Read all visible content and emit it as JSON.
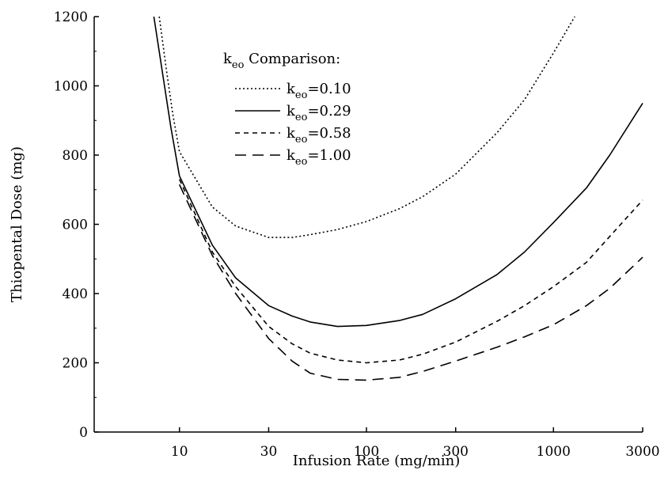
{
  "chart_data": {
    "type": "line",
    "xlabel": "Infusion Rate (mg/min)",
    "ylabel": "Thiopental Dose (mg)",
    "x_scale": "log",
    "xlim": [
      3.5,
      3000
    ],
    "ylim": [
      0,
      1200
    ],
    "x_ticks": [
      10,
      30,
      100,
      300,
      1000,
      3000
    ],
    "x_tick_labels": [
      "10",
      "30",
      "100",
      "300",
      "1000",
      "3000"
    ],
    "y_ticks": [
      0,
      200,
      400,
      600,
      800,
      1000,
      1200
    ],
    "y_tick_labels": [
      "0",
      "200",
      "400",
      "600",
      "800",
      "1000",
      "1200"
    ],
    "legend": {
      "title_main": "k",
      "title_sub": "eo",
      "title_rest": " Comparison:",
      "placement": "top-center"
    },
    "series": [
      {
        "name": "keo=0.10",
        "label_main": "k",
        "label_sub": "eo",
        "label_rest": "=0.10",
        "style": "dotted",
        "points": [
          [
            7.8,
            1200
          ],
          [
            8.5,
            1050
          ],
          [
            9.2,
            920
          ],
          [
            10,
            810
          ],
          [
            15,
            650
          ],
          [
            20,
            595
          ],
          [
            30,
            562
          ],
          [
            40,
            562
          ],
          [
            50,
            570
          ],
          [
            70,
            585
          ],
          [
            100,
            608
          ],
          [
            150,
            645
          ],
          [
            200,
            680
          ],
          [
            300,
            745
          ],
          [
            500,
            865
          ],
          [
            700,
            960
          ],
          [
            1000,
            1095
          ],
          [
            1300,
            1200
          ]
        ]
      },
      {
        "name": "keo=0.29",
        "label_main": "k",
        "label_sub": "eo",
        "label_rest": "=0.29",
        "style": "solid",
        "points": [
          [
            7.3,
            1200
          ],
          [
            8,
            1060
          ],
          [
            9,
            880
          ],
          [
            10,
            740
          ],
          [
            15,
            540
          ],
          [
            20,
            445
          ],
          [
            30,
            365
          ],
          [
            40,
            335
          ],
          [
            50,
            318
          ],
          [
            70,
            305
          ],
          [
            100,
            308
          ],
          [
            150,
            322
          ],
          [
            200,
            340
          ],
          [
            300,
            385
          ],
          [
            500,
            455
          ],
          [
            700,
            520
          ],
          [
            1000,
            605
          ],
          [
            1500,
            705
          ],
          [
            2000,
            800
          ],
          [
            3000,
            950
          ]
        ]
      },
      {
        "name": "keo=0.58",
        "label_main": "k",
        "label_sub": "eo",
        "label_rest": "=0.58",
        "style": "short-dash",
        "points": [
          [
            10,
            730
          ],
          [
            15,
            520
          ],
          [
            20,
            420
          ],
          [
            30,
            305
          ],
          [
            40,
            255
          ],
          [
            50,
            228
          ],
          [
            70,
            208
          ],
          [
            100,
            200
          ],
          [
            150,
            208
          ],
          [
            200,
            225
          ],
          [
            300,
            260
          ],
          [
            500,
            320
          ],
          [
            700,
            365
          ],
          [
            1000,
            420
          ],
          [
            1500,
            490
          ],
          [
            2000,
            565
          ],
          [
            3000,
            670
          ]
        ]
      },
      {
        "name": "keo=1.00",
        "label_main": "k",
        "label_sub": "eo",
        "label_rest": "=1.00",
        "style": "long-dash",
        "points": [
          [
            10,
            715
          ],
          [
            15,
            510
          ],
          [
            20,
            400
          ],
          [
            30,
            270
          ],
          [
            40,
            205
          ],
          [
            50,
            170
          ],
          [
            70,
            152
          ],
          [
            100,
            150
          ],
          [
            150,
            158
          ],
          [
            200,
            175
          ],
          [
            300,
            205
          ],
          [
            500,
            245
          ],
          [
            700,
            275
          ],
          [
            1000,
            310
          ],
          [
            1500,
            365
          ],
          [
            2000,
            415
          ],
          [
            3000,
            505
          ]
        ]
      }
    ]
  }
}
